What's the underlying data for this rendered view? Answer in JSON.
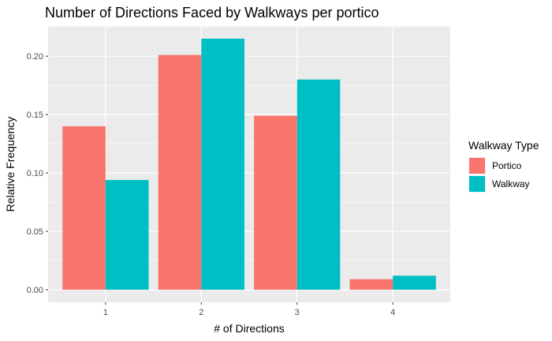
{
  "chart_data": {
    "type": "bar",
    "title": "Number of Directions Faced by Walkways per portico",
    "xlabel": "# of Directions",
    "ylabel": "Relative Frequency",
    "categories": [
      "1",
      "2",
      "3",
      "4"
    ],
    "series": [
      {
        "name": "Portico",
        "color": "#F8766D",
        "values": [
          0.14,
          0.201,
          0.149,
          0.009
        ]
      },
      {
        "name": "Walkway",
        "color": "#00BFC4",
        "values": [
          0.094,
          0.215,
          0.18,
          0.012
        ]
      }
    ],
    "yticks": [
      "0.00",
      "0.05",
      "0.10",
      "0.15",
      "0.20"
    ],
    "ylim": [
      -0.0108,
      0.2258
    ],
    "grid": true,
    "legend": {
      "title": "Walkway Type",
      "position": "right"
    }
  }
}
